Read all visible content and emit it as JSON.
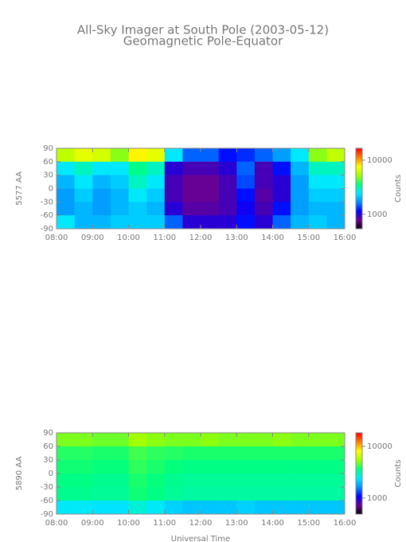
{
  "title": "All-Sky Imager at South Pole (2003-05-12)",
  "subtitle": "Geomagnetic Pole-Equator",
  "chart_data": [
    {
      "type": "heatmap",
      "ylabel": "5577 AA",
      "colorbar_label": "Counts",
      "colormap": [
        "#000000",
        "#6a0090",
        "#0000ff",
        "#0090ff",
        "#00e8ff",
        "#00ff80",
        "#a0ff00",
        "#ffff00",
        "#ff8000",
        "#ff0000"
      ],
      "x": [
        8.25,
        8.75,
        9.25,
        9.75,
        10.25,
        10.75,
        11.25,
        11.75,
        12.25,
        12.75,
        13.25,
        13.75,
        14.25,
        14.75,
        15.25,
        15.75
      ],
      "y": [
        75,
        45,
        15,
        -15,
        -45,
        -75
      ],
      "z": [
        [
          6000,
          7000,
          6500,
          5000,
          8000,
          7000,
          2500,
          1500,
          1500,
          1200,
          1300,
          1500,
          1800,
          2500,
          5000,
          6000
        ],
        [
          2500,
          3000,
          2500,
          2500,
          3500,
          3000,
          1000,
          900,
          900,
          1000,
          1500,
          900,
          1200,
          2000,
          3000,
          3000
        ],
        [
          2000,
          2500,
          2000,
          2200,
          3000,
          2500,
          900,
          800,
          800,
          900,
          1400,
          900,
          1000,
          1800,
          2500,
          2500
        ],
        [
          1800,
          2200,
          1800,
          2000,
          2500,
          2200,
          900,
          800,
          800,
          900,
          1200,
          850,
          1000,
          1800,
          2200,
          2200
        ],
        [
          1800,
          2000,
          1800,
          2000,
          2200,
          2000,
          1000,
          850,
          850,
          900,
          1100,
          900,
          1200,
          1800,
          2000,
          2000
        ],
        [
          2500,
          2000,
          2000,
          2200,
          2200,
          2200,
          1500,
          1000,
          1000,
          1000,
          1200,
          1000,
          1500,
          2000,
          2200,
          2000
        ]
      ],
      "xlim": [
        8,
        16
      ],
      "xticks": [
        {
          "value": 8,
          "label": "08:00"
        },
        {
          "value": 9,
          "label": "09:00"
        },
        {
          "value": 10,
          "label": "10:00"
        },
        {
          "value": 11,
          "label": "11:00"
        },
        {
          "value": 12,
          "label": "12:00"
        },
        {
          "value": 13,
          "label": "13:00"
        },
        {
          "value": 14,
          "label": "14:00"
        },
        {
          "value": 15,
          "label": "15:00"
        },
        {
          "value": 16,
          "label": "16:00"
        }
      ],
      "ylim": [
        -90,
        90
      ],
      "yticks": [
        -90,
        -60,
        -30,
        0,
        30,
        60,
        90
      ],
      "zlim": [
        540,
        16600
      ],
      "zticks": [
        1000,
        10000
      ],
      "zscale": "log"
    },
    {
      "type": "heatmap",
      "ylabel": "5890 AA",
      "colorbar_label": "Counts",
      "xlabel": "Universal Time",
      "colormap": [
        "#000000",
        "#6a0090",
        "#0000ff",
        "#0090ff",
        "#00e8ff",
        "#00ff80",
        "#a0ff00",
        "#ffff00",
        "#ff8000",
        "#ff0000"
      ],
      "x": [
        8.25,
        8.75,
        9.25,
        9.75,
        10.25,
        10.75,
        11.25,
        11.75,
        12.25,
        12.75,
        13.25,
        13.75,
        14.25,
        14.75,
        15.25,
        15.75
      ],
      "y": [
        75,
        45,
        15,
        -15,
        -45,
        -75
      ],
      "z": [
        [
          5000,
          5000,
          4800,
          4800,
          5500,
          5200,
          5000,
          5000,
          5200,
          5000,
          5000,
          5000,
          5200,
          5000,
          5000,
          5000
        ],
        [
          4000,
          4000,
          3900,
          3900,
          4300,
          4100,
          4000,
          3900,
          3900,
          3900,
          3900,
          3900,
          3900,
          3900,
          3900,
          3900
        ],
        [
          3800,
          3800,
          3700,
          3700,
          4100,
          3900,
          3700,
          3600,
          3600,
          3600,
          3600,
          3600,
          3600,
          3600,
          3600,
          3600
        ],
        [
          3600,
          3600,
          3500,
          3500,
          3900,
          3700,
          3500,
          3400,
          3400,
          3400,
          3400,
          3400,
          3400,
          3400,
          3400,
          3400
        ],
        [
          3500,
          3500,
          3400,
          3400,
          3800,
          3600,
          3400,
          3300,
          3300,
          3300,
          3300,
          3300,
          3300,
          3300,
          3300,
          3300
        ],
        [
          2500,
          2500,
          2400,
          2400,
          2800,
          2500,
          2200,
          2100,
          2100,
          2100,
          2200,
          2100,
          2100,
          2100,
          2100,
          2100
        ]
      ],
      "xlim": [
        8,
        16
      ],
      "xticks": [
        {
          "value": 8,
          "label": "08:00"
        },
        {
          "value": 9,
          "label": "09:00"
        },
        {
          "value": 10,
          "label": "10:00"
        },
        {
          "value": 11,
          "label": "11:00"
        },
        {
          "value": 12,
          "label": "12:00"
        },
        {
          "value": 13,
          "label": "13:00"
        },
        {
          "value": 14,
          "label": "14:00"
        },
        {
          "value": 15,
          "label": "15:00"
        },
        {
          "value": 16,
          "label": "16:00"
        }
      ],
      "ylim": [
        -90,
        90
      ],
      "yticks": [
        -90,
        -60,
        -30,
        0,
        30,
        60,
        90
      ],
      "zlim": [
        490,
        18300
      ],
      "zticks": [
        1000,
        10000
      ],
      "zscale": "log"
    }
  ]
}
